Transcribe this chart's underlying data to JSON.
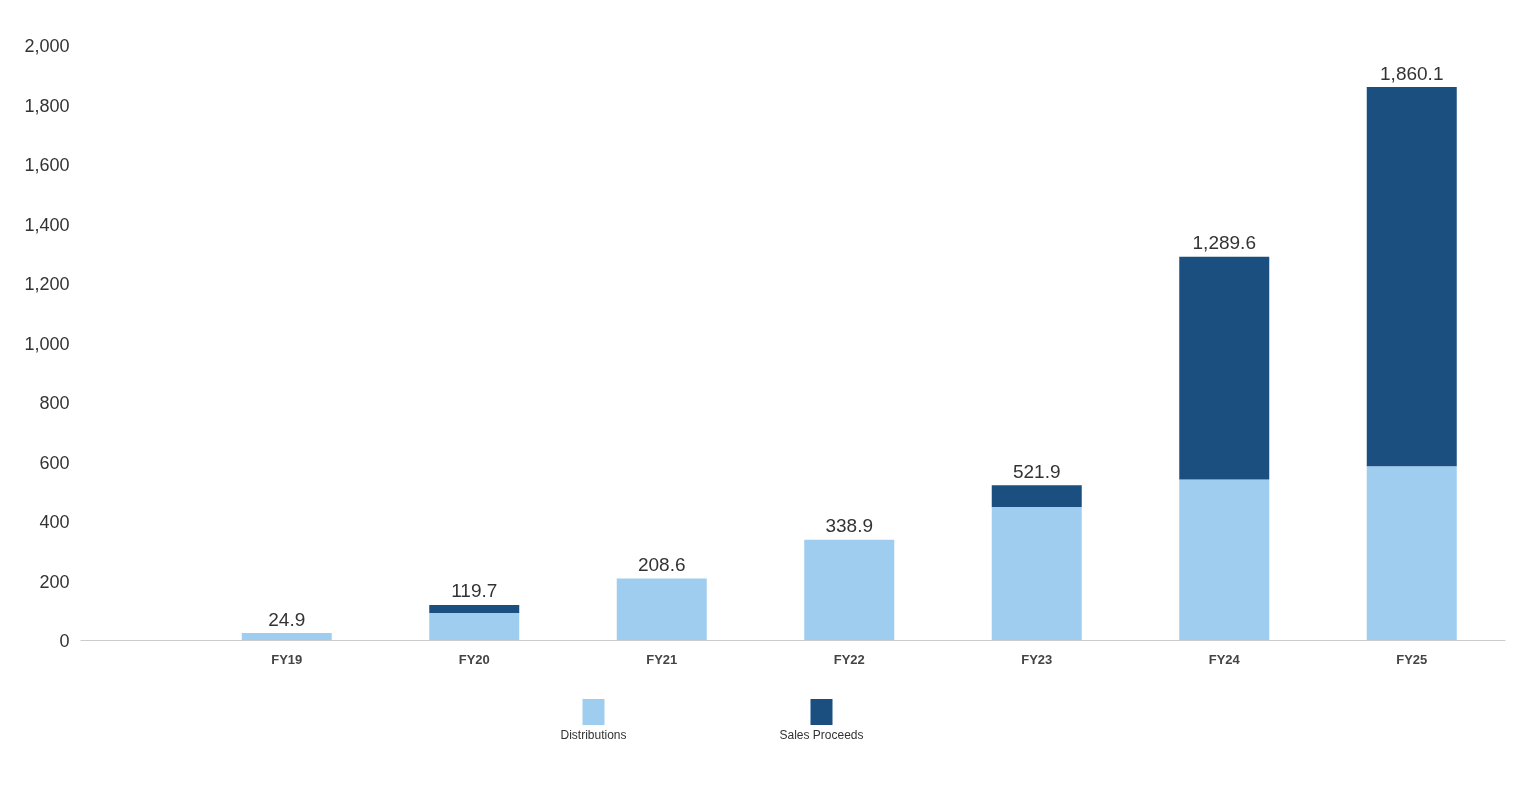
{
  "chart_data": {
    "type": "bar",
    "stacked": true,
    "categories": [
      "FY19",
      "FY20",
      "FY21",
      "FY22",
      "FY23",
      "FY24",
      "FY25"
    ],
    "series": [
      {
        "name": "Distributions",
        "color": "#9fcdf0",
        "values": [
          24.9,
          92.1,
          208.6,
          338.9,
          448.6,
          541.4,
          585.6
        ]
      },
      {
        "name": "Sales Proceeds",
        "color": "#1a4f80",
        "values": [
          0,
          27.6,
          0,
          0,
          73.3,
          748.2,
          1274.5
        ]
      }
    ],
    "totals": [
      "24.9",
      "119.7",
      "208.6",
      "338.9",
      "521.9",
      "1,289.6",
      "1,860.1"
    ],
    "ylim": [
      0,
      2000
    ],
    "yticks": [
      {
        "value": 0,
        "label": "0"
      },
      {
        "value": 200,
        "label": "200"
      },
      {
        "value": 400,
        "label": "400"
      },
      {
        "value": 600,
        "label": "600"
      },
      {
        "value": 800,
        "label": "800"
      },
      {
        "value": 1000,
        "label": "1,000"
      },
      {
        "value": 1200,
        "label": "1,200"
      },
      {
        "value": 1400,
        "label": "1,400"
      },
      {
        "value": 1600,
        "label": "1,600"
      },
      {
        "value": 1800,
        "label": "1,800"
      },
      {
        "value": 2000,
        "label": "2,000"
      }
    ],
    "grid": false,
    "legend": "bottom"
  }
}
